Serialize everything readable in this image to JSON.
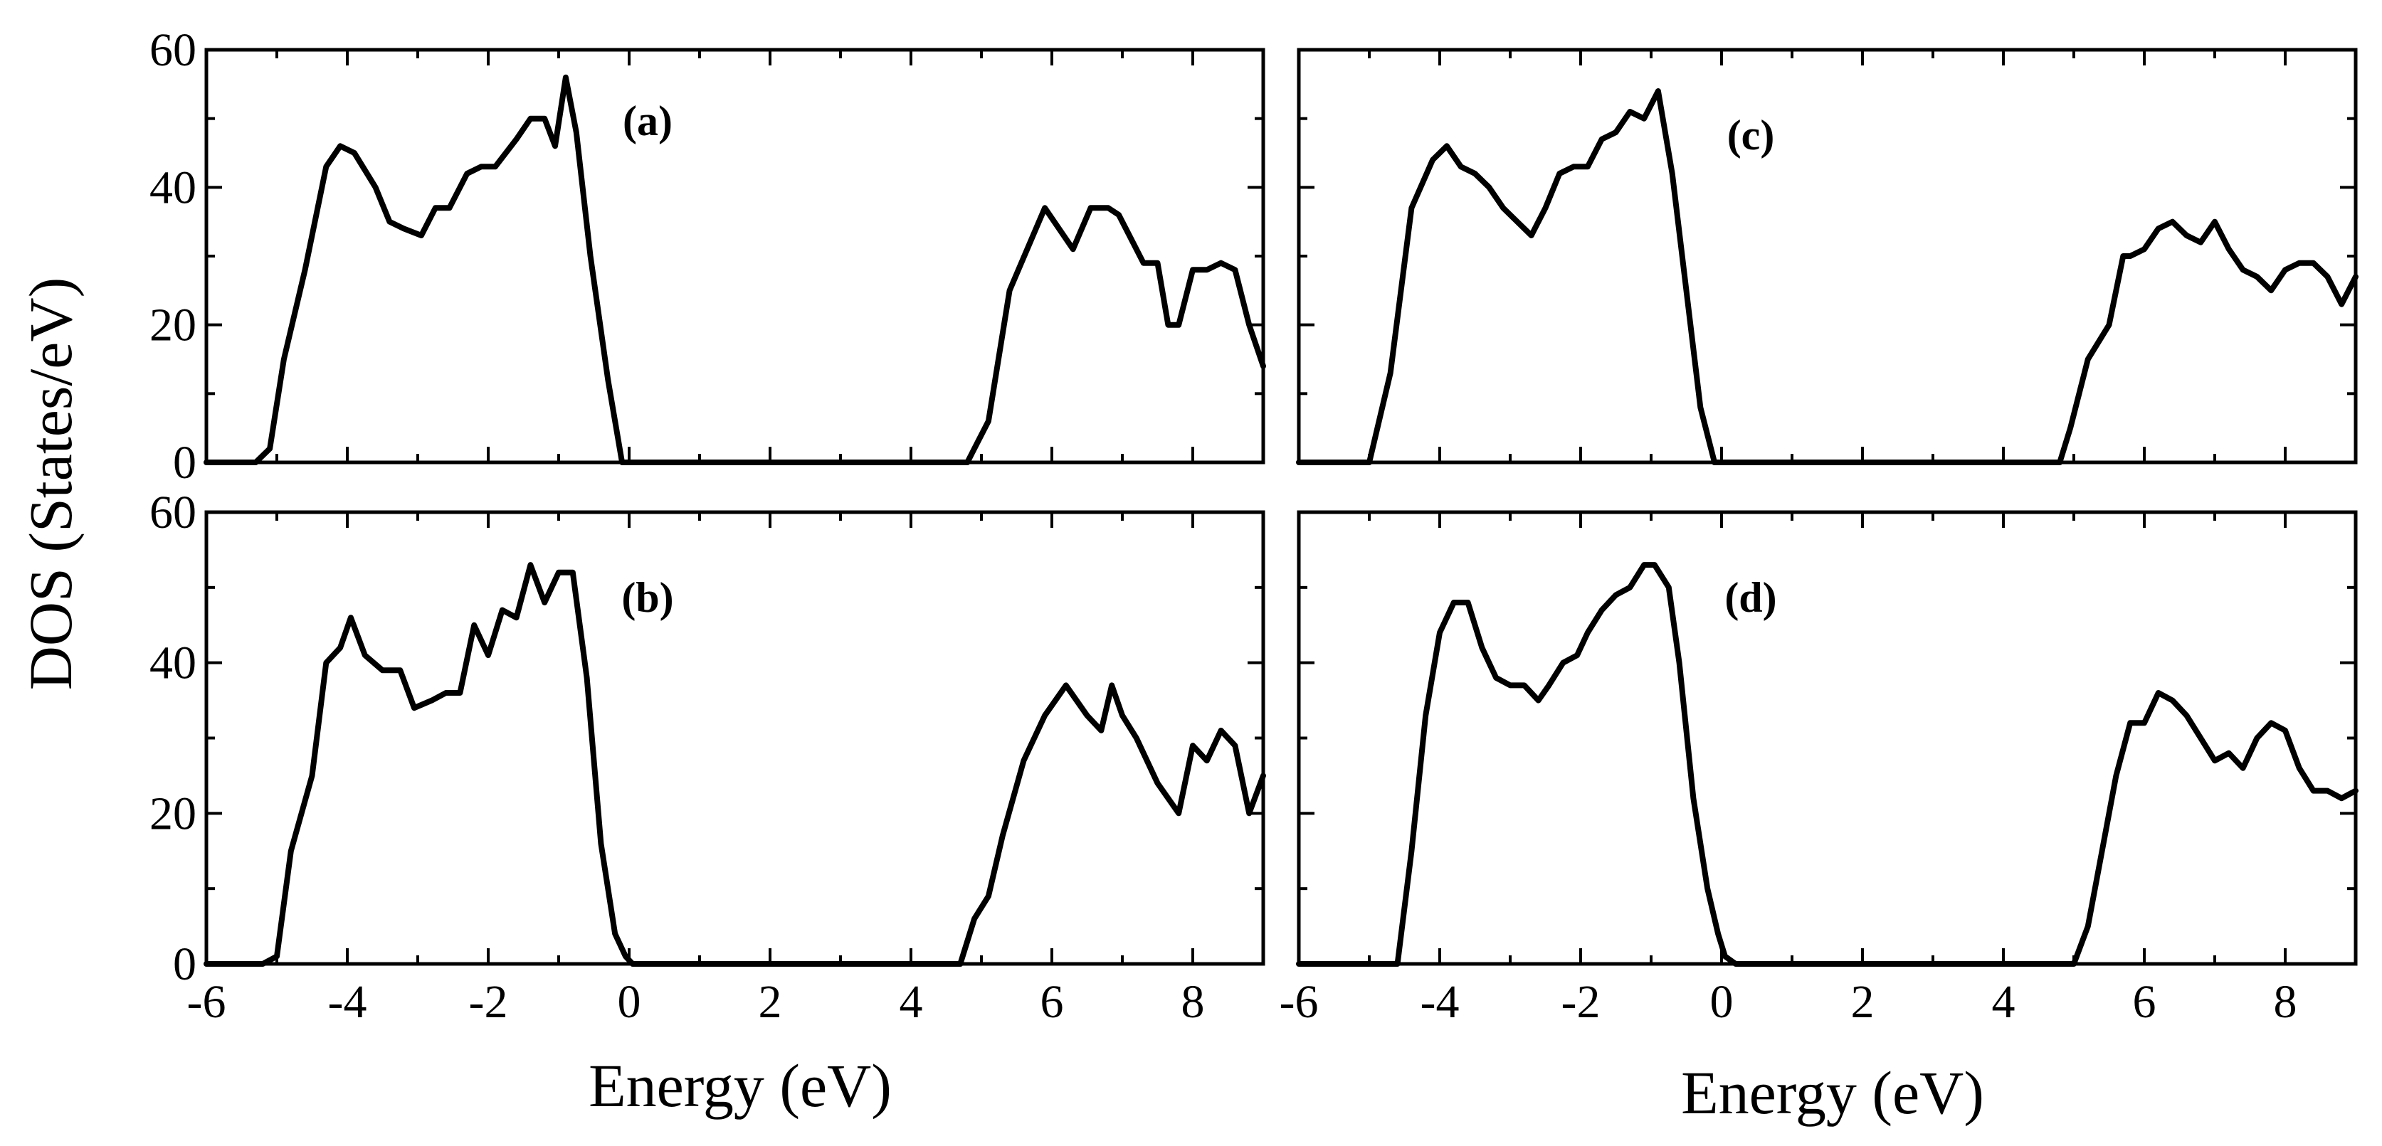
{
  "figure": {
    "ylabel": "DOS (States/eV)",
    "xlabel_left": "Energy (eV)",
    "xlabel_right": "Energy (eV)"
  },
  "chart_data": [
    {
      "type": "line",
      "panel": "(a)",
      "xlim": [
        -6,
        9
      ],
      "ylim": [
        0,
        60
      ],
      "x_ticks": [
        -6,
        -4,
        -2,
        0,
        2,
        4,
        6,
        8
      ],
      "y_ticks": [
        0,
        20,
        40,
        60
      ],
      "series": [
        {
          "x": [
            -6,
            -5.3,
            -5.1,
            -4.9,
            -4.6,
            -4.3,
            -4.1,
            -3.9,
            -3.6,
            -3.4,
            -3.2,
            -2.95,
            -2.75,
            -2.55,
            -2.3,
            -2.1,
            -1.9,
            -1.6,
            -1.4,
            -1.2,
            -1.05,
            -0.9,
            -0.75,
            -0.55,
            -0.3,
            -0.1,
            0,
            2,
            4,
            4.8,
            4.95,
            5.1,
            5.4,
            5.9,
            6.3,
            6.55,
            6.8,
            6.95,
            7.1,
            7.3,
            7.5,
            7.65,
            7.8,
            8.0,
            8.2,
            8.4,
            8.6,
            8.8,
            9.0
          ],
          "y": [
            0,
            0,
            2,
            15,
            28,
            43,
            46,
            45,
            40,
            35,
            34,
            33,
            37,
            37,
            42,
            43,
            43,
            47,
            50,
            50,
            46,
            56,
            48,
            30,
            12,
            0,
            0,
            0,
            0,
            0,
            3,
            6,
            25,
            37,
            31,
            37,
            37,
            36,
            33,
            29,
            29,
            20,
            20,
            28,
            28,
            29,
            28,
            20,
            14
          ]
        }
      ]
    },
    {
      "type": "line",
      "panel": "(b)",
      "xlim": [
        -6,
        9
      ],
      "ylim": [
        0,
        60
      ],
      "x_ticks": [
        -6,
        -4,
        -2,
        0,
        2,
        4,
        6,
        8
      ],
      "y_ticks": [
        0,
        20,
        40,
        60
      ],
      "series": [
        {
          "x": [
            -6,
            -5.2,
            -5.0,
            -4.8,
            -4.5,
            -4.3,
            -4.1,
            -3.95,
            -3.75,
            -3.5,
            -3.25,
            -3.05,
            -2.8,
            -2.6,
            -2.4,
            -2.2,
            -2.0,
            -1.8,
            -1.6,
            -1.4,
            -1.2,
            -1.0,
            -0.8,
            -0.6,
            -0.4,
            -0.2,
            -0.05,
            0.05,
            0.2,
            2,
            4,
            4.7,
            4.9,
            5.1,
            5.3,
            5.6,
            5.9,
            6.2,
            6.5,
            6.7,
            6.85,
            7.0,
            7.2,
            7.5,
            7.8,
            8.0,
            8.2,
            8.4,
            8.6,
            8.8,
            9.0
          ],
          "y": [
            0,
            0,
            1,
            15,
            25,
            40,
            42,
            46,
            41,
            39,
            39,
            34,
            35,
            36,
            36,
            45,
            41,
            47,
            46,
            53,
            48,
            52,
            52,
            38,
            16,
            4,
            1,
            0,
            0,
            0,
            0,
            0,
            6,
            9,
            17,
            27,
            33,
            37,
            33,
            31,
            37,
            33,
            30,
            24,
            20,
            29,
            27,
            31,
            29,
            20,
            25
          ]
        }
      ]
    },
    {
      "type": "line",
      "panel": "(c)",
      "xlim": [
        -6,
        9
      ],
      "ylim": [
        0,
        60
      ],
      "x_ticks": [
        -6,
        -4,
        -2,
        0,
        2,
        4,
        6,
        8
      ],
      "y_ticks": [
        0,
        20,
        40,
        60
      ],
      "series": [
        {
          "x": [
            -6,
            -5.1,
            -5.0,
            -4.7,
            -4.4,
            -4.1,
            -3.9,
            -3.7,
            -3.5,
            -3.3,
            -3.1,
            -2.9,
            -2.7,
            -2.5,
            -2.3,
            -2.1,
            -1.9,
            -1.7,
            -1.5,
            -1.3,
            -1.1,
            -0.9,
            -0.7,
            -0.5,
            -0.3,
            -0.1,
            0,
            2,
            4,
            4.8,
            4.95,
            5.2,
            5.5,
            5.7,
            5.8,
            6.0,
            6.2,
            6.4,
            6.6,
            6.8,
            7.0,
            7.2,
            7.4,
            7.6,
            7.8,
            8.0,
            8.2,
            8.4,
            8.6,
            8.8,
            9.0
          ],
          "y": [
            0,
            0,
            0,
            13,
            37,
            44,
            46,
            43,
            42,
            40,
            37,
            35,
            33,
            37,
            42,
            43,
            43,
            47,
            48,
            51,
            50,
            54,
            42,
            25,
            8,
            0,
            0,
            0,
            0,
            0,
            5,
            15,
            20,
            30,
            30,
            31,
            34,
            35,
            33,
            32,
            35,
            31,
            28,
            27,
            25,
            28,
            29,
            29,
            27,
            23,
            27
          ]
        }
      ]
    },
    {
      "type": "line",
      "panel": "(d)",
      "xlim": [
        -6,
        9
      ],
      "ylim": [
        0,
        60
      ],
      "x_ticks": [
        -6,
        -4,
        -2,
        0,
        2,
        4,
        6,
        8
      ],
      "y_ticks": [
        0,
        20,
        40,
        60
      ],
      "series": [
        {
          "x": [
            -6,
            -4.6,
            -4.4,
            -4.2,
            -4.0,
            -3.8,
            -3.6,
            -3.4,
            -3.2,
            -3.0,
            -2.8,
            -2.6,
            -2.45,
            -2.25,
            -2.05,
            -1.9,
            -1.7,
            -1.5,
            -1.3,
            -1.1,
            -0.95,
            -0.75,
            -0.6,
            -0.4,
            -0.2,
            -0.05,
            0.05,
            0.2,
            2,
            4,
            5.0,
            5.2,
            5.4,
            5.6,
            5.8,
            6.0,
            6.2,
            6.4,
            6.6,
            6.8,
            7.0,
            7.2,
            7.4,
            7.6,
            7.8,
            8.0,
            8.2,
            8.4,
            8.6,
            8.8,
            9.0
          ],
          "y": [
            0,
            0,
            15,
            33,
            44,
            48,
            48,
            42,
            38,
            37,
            37,
            35,
            37,
            40,
            41,
            44,
            47,
            49,
            50,
            53,
            53,
            50,
            40,
            22,
            10,
            4,
            1,
            0,
            0,
            0,
            0,
            5,
            15,
            25,
            32,
            32,
            36,
            35,
            33,
            30,
            27,
            28,
            26,
            30,
            32,
            31,
            26,
            23,
            23,
            22,
            23
          ]
        }
      ]
    }
  ]
}
